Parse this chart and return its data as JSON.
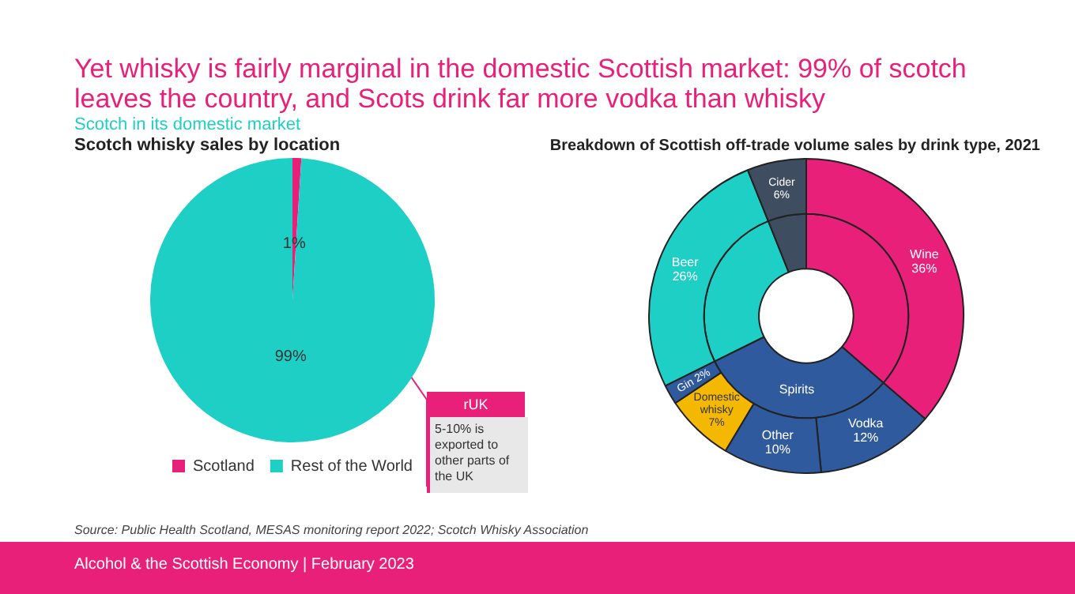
{
  "chart_data": [
    {
      "type": "pie",
      "title": "Scotch whisky sales by location",
      "categories": [
        "Scotland",
        "Rest of the World"
      ],
      "values": [
        1,
        99
      ],
      "colors": [
        "#e8207a",
        "#1ecfc6"
      ],
      "value_labels": [
        "1%",
        "99%"
      ],
      "legend": "bottom",
      "annotations": [
        "Yet whisky is fairly marginal in the domestic Scottish market: 99% of scotch leaves the country, and Scots drink far more vodka than whisky",
        "Scotch in its domestic market",
        "rUK",
        "5-10% is exported to other parts of the UK",
        "Source: Public Health Scotland, MESAS monitoring report 2022; Scotch Whisky Association",
        "Alcohol & the Scottish Economy | February 2023"
      ]
    },
    {
      "type": "donut",
      "title": "Breakdown of Scottish off-trade volume sales by drink type, 2021",
      "categories": [
        "Wine",
        "Vodka",
        "Other",
        "Domestic whisky",
        "Gin",
        "Beer",
        "Cider"
      ],
      "legend": false,
      "series": [
        {
          "values": [
            36,
            12,
            10,
            7,
            2,
            26,
            6
          ],
          "colors": [
            "#e8207a",
            "#2f5a9e",
            "#2f5a9e",
            "#f5b800",
            "#2f5a9e",
            "#1ecfc6",
            "#3e4d60"
          ],
          "value_labels": [
            "36%",
            "12%",
            "10%",
            "7%",
            "2%",
            "26%",
            "6%"
          ]
        },
        {
          "values": [
            36,
            31,
            null,
            null,
            null,
            26,
            6
          ],
          "colors": [
            "#e8207a",
            "#2f5a9e",
            "#2f5a9e",
            "#2f5a9e",
            "#2f5a9e",
            "#1ecfc6",
            "#3e4d60"
          ],
          "value_labels": [
            null,
            "Spirits",
            null,
            null,
            null,
            null,
            null
          ]
        }
      ]
    }
  ]
}
